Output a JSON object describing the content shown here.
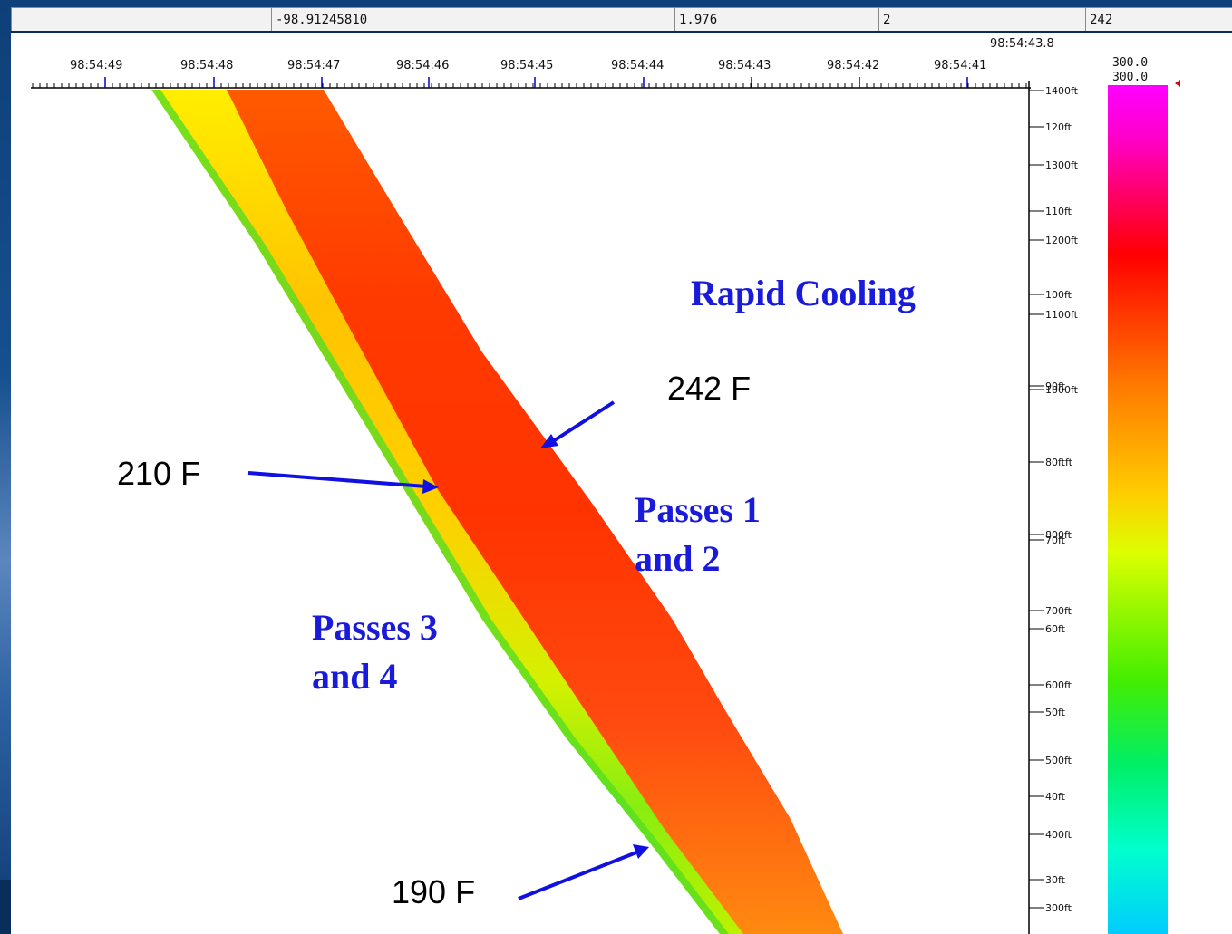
{
  "status_bar": {
    "longitude": "-98.91245810",
    "field2": "1.976",
    "field3": "2",
    "field4": "242"
  },
  "x_axis": {
    "corner_label": "98:54:43.8",
    "ticks": [
      "98:54:49",
      "98:54:48",
      "98:54:47",
      "98:54:46",
      "98:54:45",
      "98:54:44",
      "98:54:43",
      "98:54:42",
      "98:54:41"
    ]
  },
  "y_axis": {
    "labels": [
      {
        "text": "1400ft"
      },
      {
        "text": "120ft"
      },
      {
        "text": "1300ft"
      },
      {
        "text": "110ft"
      },
      {
        "text": "1200ft"
      },
      {
        "text": "100ft"
      },
      {
        "text": "1100ft"
      },
      {
        "text": "90ft"
      },
      {
        "text": "1000ft"
      },
      {
        "text": "80ftft"
      },
      {
        "text": "800ft"
      },
      {
        "text": "70ft"
      },
      {
        "text": "700ft"
      },
      {
        "text": "60ft"
      },
      {
        "text": "600ft"
      },
      {
        "text": "50ft"
      },
      {
        "text": "500ft"
      },
      {
        "text": "40ft"
      },
      {
        "text": "400ft"
      },
      {
        "text": "30ft"
      },
      {
        "text": "300ft"
      }
    ]
  },
  "color_scale": {
    "max_label_1": "300.0",
    "max_label_2": "300.0",
    "colors": [
      "#ff00ff",
      "#ff0000",
      "#ff8800",
      "#ffee00",
      "#aaff00",
      "#00ee00",
      "#00ffaa",
      "#00ccff"
    ]
  },
  "annotations": {
    "rapid_cooling": "Rapid Cooling",
    "passes_1_2": "Passes 1\nand 2",
    "passes_3_4": "Passes 3\nand 4",
    "temp_242": "242 F",
    "temp_210": "210 F",
    "temp_190": "190 F"
  },
  "strips": {
    "passes_1_2_color": "#ff4a12",
    "passes_3_4_color": "#ffcc00",
    "arrow_color": "#1010e0"
  }
}
